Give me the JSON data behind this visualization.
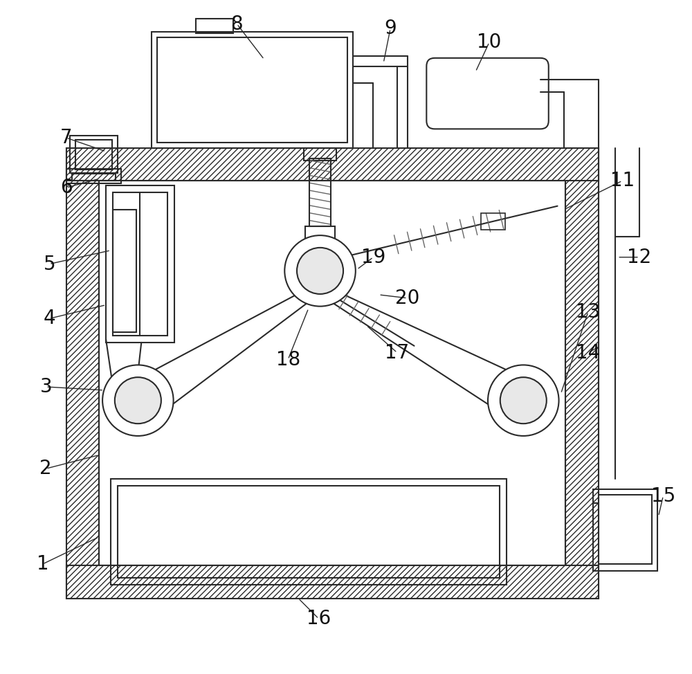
{
  "bg_color": "#ffffff",
  "line_color": "#2a2a2a",
  "label_color": "#111111",
  "fig_width": 10.0,
  "fig_height": 9.74,
  "label_fontsize": 20,
  "lw_main": 1.5,
  "lw_thin": 1.0
}
